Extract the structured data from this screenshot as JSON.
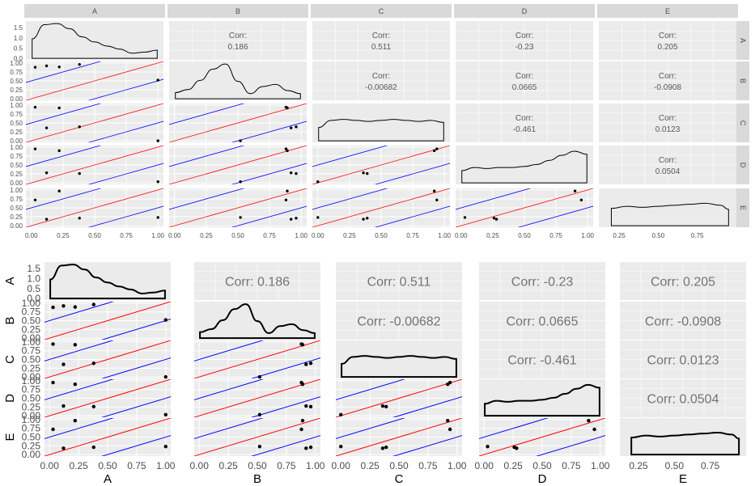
{
  "chart_data": [
    {
      "type": "scatter",
      "variables": [
        "A",
        "B",
        "C",
        "D",
        "E"
      ],
      "points": {
        "A": [
          0.03,
          0.22,
          0.12,
          0.38,
          1.0
        ],
        "B": [
          0.88,
          0.89,
          0.92,
          0.96,
          0.52
        ],
        "C": [
          0.94,
          0.92,
          0.36,
          0.39,
          0.0
        ],
        "D": [
          0.95,
          0.9,
          0.28,
          0.26,
          0.03
        ],
        "E": [
          0.72,
          0.97,
          0.18,
          0.21,
          0.23
        ]
      },
      "correlations": {
        "A-B": "0.186",
        "A-C": "0.511",
        "A-D": "-0.23",
        "A-E": "0.205",
        "B-C": "-0.00682",
        "B-D": "0.0665",
        "B-E": "-0.0908",
        "C-D": "-0.461",
        "C-E": "0.0123",
        "D-E": "0.0504"
      },
      "corr_prefix": "Corr:",
      "diag_ylim": [
        0,
        1.75
      ],
      "diag_yticks": [
        "0.0",
        "0.5",
        "1.0",
        "1.5"
      ],
      "diag_density_x": [
        [
          0,
          0.1,
          0.2,
          0.3,
          0.4,
          0.5,
          0.6,
          0.7,
          0.8,
          0.9,
          1.0
        ],
        [
          0,
          0.1,
          0.2,
          0.3,
          0.4,
          0.5,
          0.6,
          0.7,
          0.8,
          0.9,
          1.0
        ],
        [
          0,
          0.1,
          0.2,
          0.3,
          0.4,
          0.5,
          0.6,
          0.7,
          0.8,
          0.9,
          1.0
        ],
        [
          0,
          0.1,
          0.2,
          0.3,
          0.4,
          0.5,
          0.6,
          0.7,
          0.8,
          0.9,
          1.0
        ],
        [
          0.2,
          0.3,
          0.4,
          0.5,
          0.6,
          0.7,
          0.8,
          0.9,
          0.95
        ]
      ],
      "diag_density_y": [
        [
          0.95,
          1.65,
          1.7,
          1.45,
          1.05,
          0.8,
          0.6,
          0.45,
          0.25,
          0.3,
          0.4
        ],
        [
          0.3,
          0.45,
          0.9,
          1.45,
          1.7,
          0.85,
          0.25,
          0.6,
          0.7,
          0.4,
          0.25
        ],
        [
          0.65,
          1.0,
          1.05,
          1.0,
          0.95,
          1.0,
          1.05,
          1.0,
          0.95,
          1.0,
          0.9
        ],
        [
          0.6,
          0.75,
          0.7,
          0.75,
          0.75,
          0.8,
          0.9,
          1.1,
          1.35,
          1.55,
          1.4
        ],
        [
          0.85,
          0.95,
          0.9,
          0.95,
          1.0,
          1.05,
          1.1,
          1.0,
          0.8
        ]
      ],
      "x_ticks": [
        "0.00",
        "0.25",
        "0.50",
        "0.75",
        "1.00"
      ],
      "y_ticks": [
        "0.00",
        "0.25",
        "0.50",
        "0.75",
        "1.00"
      ],
      "e_ticks": [
        "0.25",
        "0.50",
        "0.75"
      ],
      "reference_lines": {
        "red_offset": 0,
        "blue_offsets": [
          0.5,
          -0.5
        ]
      },
      "grid": true
    },
    {
      "type": "scatter",
      "variables": [
        "A",
        "B",
        "C",
        "D",
        "E"
      ],
      "x_axis_labels": [
        "A",
        "B",
        "C",
        "D",
        "E"
      ],
      "y_axis_labels": [
        "A",
        "B",
        "C",
        "D",
        "E"
      ],
      "corr_prefix": "Corr:",
      "grid": true
    }
  ],
  "colors": {
    "panel_bg": "#ebebeb",
    "strip_bg": "#d9d9d9",
    "grid_major": "#ffffff",
    "red_line": "#ff0000",
    "blue_line": "#0000ff",
    "point": "#000000",
    "text": "#4d4d4d",
    "corr_text": "#595959",
    "corr_text_bottom": "#737373"
  }
}
